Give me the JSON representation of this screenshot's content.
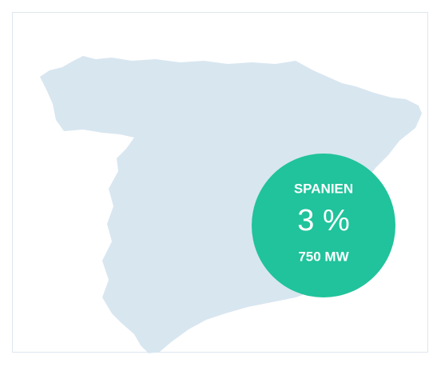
{
  "map": {
    "country": "SPANIEN",
    "share": "3 %",
    "capacity": "750 MW"
  }
}
